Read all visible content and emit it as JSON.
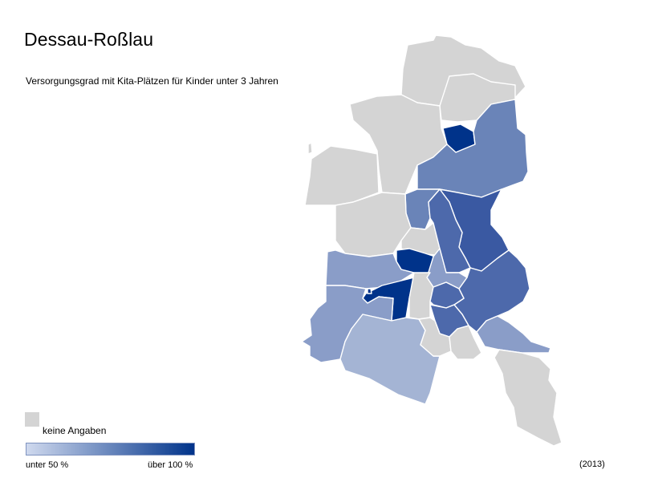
{
  "title": "Dessau-Roßlau",
  "subtitle": "Versorgungsgrad mit Kita-Plätzen für Kinder unter 3 Jahren",
  "year": "(2013)",
  "legend": {
    "no_data_label": "keine Angaben",
    "min_label": "unter 50 %",
    "max_label": "über 100 %",
    "no_data_color": "#d4d4d4",
    "gradient_start": "#cfd9ee",
    "gradient_end": "#00338a"
  },
  "colors": {
    "no_data": "#d4d4d4",
    "class_1": "#a4b4d4",
    "class_2": "#8a9dc8",
    "class_3": "#6a84b8",
    "class_4": "#4d69ab",
    "class_5": "#3a59a2",
    "class_6": "#00338a"
  }
}
